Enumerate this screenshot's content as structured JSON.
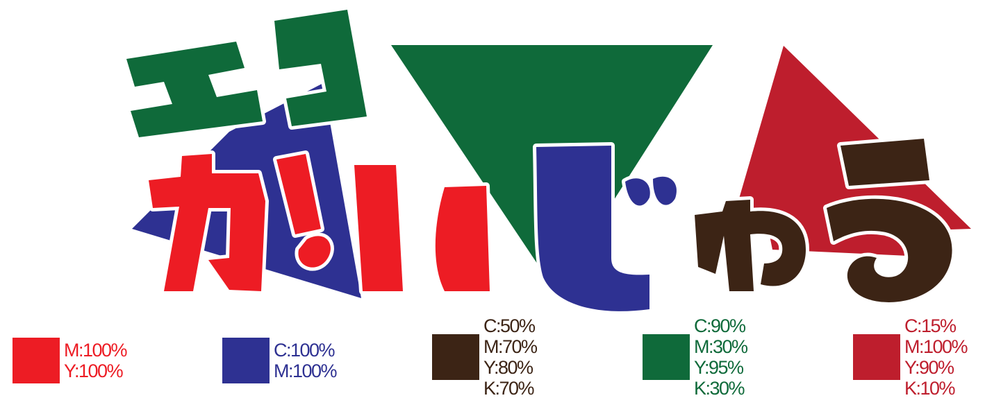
{
  "logo": {
    "title_small": "エコ",
    "title_main": "がいじゅう",
    "logo_icon": "eco-gaijuu-wordmark"
  },
  "palette": [
    {
      "name": "red",
      "hex": "#ed1c24",
      "lines": [
        "M:100%",
        "Y:100%"
      ]
    },
    {
      "name": "blue",
      "hex": "#2e3192",
      "lines": [
        "C:100%",
        "M:100%"
      ]
    },
    {
      "name": "brown",
      "hex": "#3c2415",
      "lines": [
        "C:50%",
        "M:70%",
        "Y:80%",
        "K:70%"
      ]
    },
    {
      "name": "green",
      "hex": "#0f6a3a",
      "lines": [
        "C:90%",
        "M:30%",
        "Y:95%",
        "K:30%"
      ]
    },
    {
      "name": "crimson",
      "hex": "#be1e2d",
      "lines": [
        "C:15%",
        "M:100%",
        "Y:90%",
        "K:10%"
      ]
    }
  ]
}
